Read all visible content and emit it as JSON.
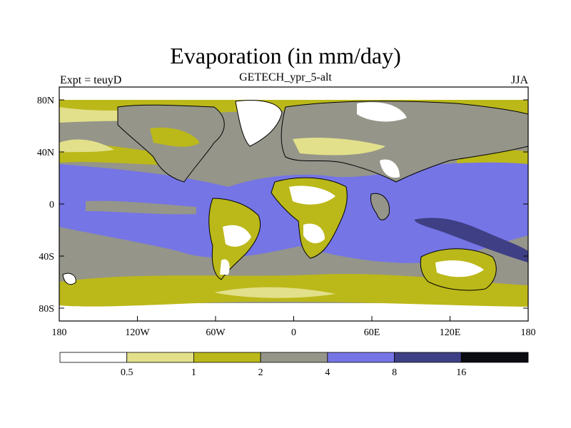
{
  "header": {
    "title": "Evaporation (in mm/day)",
    "subtitle": "GETECH_ypr_5-alt",
    "left_label": "Expt = teuyD",
    "right_label": "JJA"
  },
  "map": {
    "lat_ticks": [
      "80N",
      "40N",
      "0",
      "40S",
      "80S"
    ],
    "lon_ticks": [
      "180",
      "120W",
      "60W",
      "0",
      "60E",
      "120E",
      "180"
    ]
  },
  "colorbar": {
    "levels": [
      "0.5",
      "1",
      "2",
      "4",
      "8",
      "16"
    ],
    "colors": [
      "#ffffff",
      "#e2e08a",
      "#bbb81a",
      "#95958a",
      "#7575e6",
      "#3f3f85",
      "#0b0b12"
    ]
  },
  "colors": {
    "ocean_tropics": "#7575e6",
    "ocean_midlat": "#95958a",
    "dry_land": "#ffffff",
    "coastline": "#000000"
  }
}
